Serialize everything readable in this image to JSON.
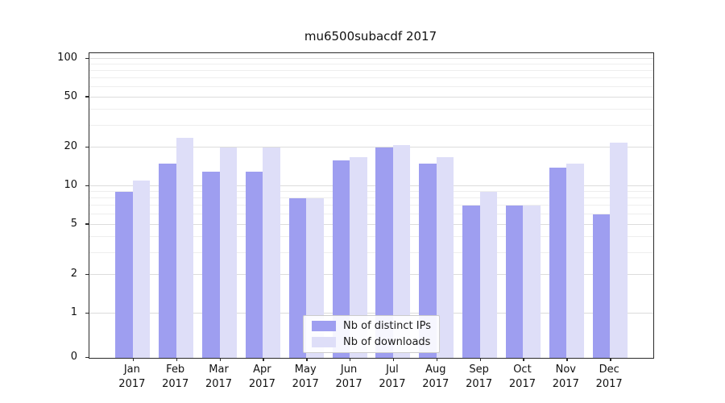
{
  "title": "mu6500subacdf 2017",
  "chart_data": {
    "type": "bar",
    "title": "mu6500subacdf 2017",
    "categories": [
      "Jan 2017",
      "Feb 2017",
      "Mar 2017",
      "Apr 2017",
      "May 2017",
      "Jun 2017",
      "Jul 2017",
      "Aug 2017",
      "Sep 2017",
      "Oct 2017",
      "Nov 2017",
      "Dec 2017"
    ],
    "series": [
      {
        "name": "Nb of distinct IPs",
        "color": "#9e9ef0",
        "values": [
          9,
          15,
          13,
          13,
          8,
          16,
          20,
          15,
          7,
          7,
          14,
          6
        ]
      },
      {
        "name": "Nb of downloads",
        "color": "#dedef8",
        "values": [
          11,
          24,
          20,
          20,
          8,
          17,
          21,
          17,
          9,
          7,
          15,
          22
        ]
      }
    ],
    "yscale": "symlog",
    "ylim": [
      0,
      100
    ],
    "yticks": [
      0,
      1,
      2,
      5,
      10,
      20,
      50,
      100
    ],
    "minor_yticks": [
      3,
      4,
      6,
      7,
      8,
      9,
      30,
      40,
      60,
      70,
      80,
      90
    ],
    "grid": true,
    "legend_position": "lower center",
    "xlabel": "",
    "ylabel": ""
  }
}
